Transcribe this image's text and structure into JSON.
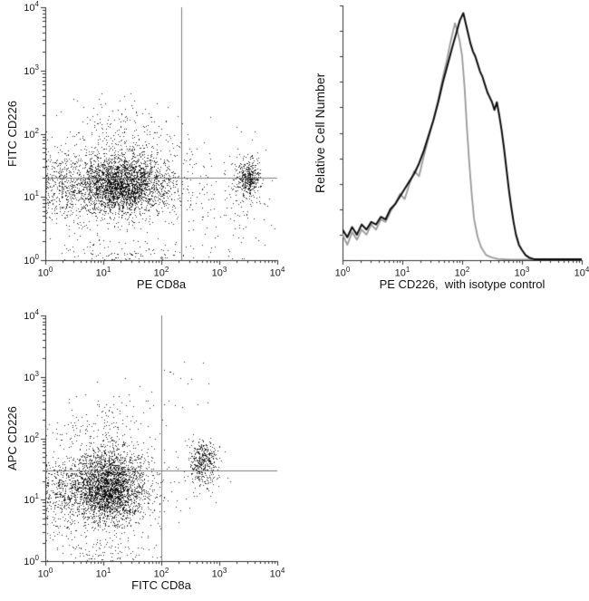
{
  "figure": {
    "background": "#ffffff",
    "axis_color": "#333333",
    "gate_color": "#7d7d7d"
  },
  "chart_data": [
    {
      "id": "fitc-cd226-vs-pe-cd8a",
      "type": "scatter",
      "xlabel": "PE CD8a",
      "ylabel": "FITC CD226",
      "x_scale": "log",
      "y_scale": "log",
      "log_base": 10,
      "xlim": [
        1,
        10000
      ],
      "ylim": [
        1,
        10000
      ],
      "x_tick_exponents": [
        0,
        1,
        2,
        3,
        4
      ],
      "y_tick_exponents": [
        0,
        1,
        2,
        3,
        4
      ],
      "grid": false,
      "dot_color": "#000000",
      "quadrant_gate": {
        "x": 220,
        "y": 20
      },
      "populations": [
        {
          "name": "cd8neg-cd226-main",
          "center_log": [
            1.3,
            1.2
          ],
          "sigma_log": [
            0.38,
            0.22
          ],
          "count": 2400
        },
        {
          "name": "cd8neg-halo",
          "center_log": [
            1.25,
            1.25
          ],
          "sigma_log": [
            0.6,
            0.35
          ],
          "count": 700
        },
        {
          "name": "left-edge-pileup",
          "center_log": [
            0.32,
            1.15
          ],
          "sigma_log": [
            0.25,
            0.3
          ],
          "count": 350
        },
        {
          "name": "cd226-high-sparse",
          "center_log": [
            1.3,
            2.0
          ],
          "sigma_log": [
            0.5,
            0.3
          ],
          "count": 200
        },
        {
          "name": "cd8pos-cd226pos",
          "center_log": [
            3.5,
            1.3
          ],
          "sigma_log": [
            0.1,
            0.14
          ],
          "count": 380
        },
        {
          "name": "cd8pos-halo",
          "center_log": [
            3.45,
            1.25
          ],
          "sigma_log": [
            0.2,
            0.3
          ],
          "count": 80
        },
        {
          "name": "cd8pos-cd226neg-sparse",
          "center_log": [
            3.3,
            0.7
          ],
          "sigma_log": [
            0.3,
            0.35
          ],
          "count": 70
        },
        {
          "name": "mid-sparse",
          "center_log": [
            2.5,
            1.1
          ],
          "sigma_log": [
            0.35,
            0.4
          ],
          "count": 90
        },
        {
          "name": "bottom-edge-pileup",
          "center_log": [
            1.3,
            0.12
          ],
          "sigma_log": [
            0.6,
            0.12
          ],
          "count": 120
        }
      ]
    },
    {
      "id": "pe-cd226-histogram",
      "type": "line",
      "xlabel": "PE CD226,  with isotype control",
      "ylabel": "Relative Cell Number",
      "x_scale": "log",
      "y_scale": "linear",
      "log_base": 10,
      "xlim": [
        1,
        10000
      ],
      "ylim": [
        0,
        1
      ],
      "x_tick_exponents": [
        0,
        1,
        2,
        3,
        4
      ],
      "grid": false,
      "legend": "none",
      "series": [
        {
          "name": "isotype control",
          "color": "#9a9a9a",
          "width": 1.8,
          "points_logx_y": [
            [
              0,
              0.1
            ],
            [
              0.08,
              0.06
            ],
            [
              0.16,
              0.11
            ],
            [
              0.24,
              0.08
            ],
            [
              0.32,
              0.12
            ],
            [
              0.4,
              0.1
            ],
            [
              0.48,
              0.14
            ],
            [
              0.56,
              0.12
            ],
            [
              0.64,
              0.16
            ],
            [
              0.72,
              0.15
            ],
            [
              0.8,
              0.19
            ],
            [
              0.88,
              0.22
            ],
            [
              0.96,
              0.26
            ],
            [
              1.04,
              0.24
            ],
            [
              1.12,
              0.3
            ],
            [
              1.2,
              0.35
            ],
            [
              1.28,
              0.33
            ],
            [
              1.36,
              0.41
            ],
            [
              1.44,
              0.48
            ],
            [
              1.52,
              0.55
            ],
            [
              1.6,
              0.63
            ],
            [
              1.68,
              0.72
            ],
            [
              1.74,
              0.78
            ],
            [
              1.8,
              0.85
            ],
            [
              1.84,
              0.89
            ],
            [
              1.88,
              0.93
            ],
            [
              1.92,
              0.9
            ],
            [
              1.96,
              0.86
            ],
            [
              2.0,
              0.8
            ],
            [
              2.04,
              0.68
            ],
            [
              2.08,
              0.52
            ],
            [
              2.12,
              0.38
            ],
            [
              2.16,
              0.26
            ],
            [
              2.2,
              0.16
            ],
            [
              2.26,
              0.09
            ],
            [
              2.32,
              0.05
            ],
            [
              2.4,
              0.02
            ],
            [
              2.5,
              0.01
            ],
            [
              2.6,
              0.005
            ],
            [
              2.8,
              0.002
            ],
            [
              4.0,
              0.002
            ]
          ]
        },
        {
          "name": "PE CD226",
          "color": "#0d0d0d",
          "width": 2,
          "points_logx_y": [
            [
              0,
              0.12
            ],
            [
              0.08,
              0.09
            ],
            [
              0.16,
              0.13
            ],
            [
              0.24,
              0.1
            ],
            [
              0.32,
              0.14
            ],
            [
              0.4,
              0.12
            ],
            [
              0.48,
              0.15
            ],
            [
              0.56,
              0.14
            ],
            [
              0.64,
              0.17
            ],
            [
              0.72,
              0.16
            ],
            [
              0.8,
              0.2
            ],
            [
              0.88,
              0.22
            ],
            [
              0.96,
              0.25
            ],
            [
              1.04,
              0.28
            ],
            [
              1.12,
              0.31
            ],
            [
              1.2,
              0.34
            ],
            [
              1.28,
              0.38
            ],
            [
              1.36,
              0.43
            ],
            [
              1.44,
              0.49
            ],
            [
              1.52,
              0.55
            ],
            [
              1.6,
              0.62
            ],
            [
              1.68,
              0.7
            ],
            [
              1.76,
              0.77
            ],
            [
              1.84,
              0.84
            ],
            [
              1.9,
              0.89
            ],
            [
              1.96,
              0.94
            ],
            [
              2.02,
              0.97
            ],
            [
              2.06,
              0.93
            ],
            [
              2.1,
              0.89
            ],
            [
              2.14,
              0.85
            ],
            [
              2.18,
              0.82
            ],
            [
              2.22,
              0.8
            ],
            [
              2.26,
              0.77
            ],
            [
              2.3,
              0.74
            ],
            [
              2.34,
              0.72
            ],
            [
              2.38,
              0.69
            ],
            [
              2.42,
              0.66
            ],
            [
              2.46,
              0.64
            ],
            [
              2.5,
              0.62
            ],
            [
              2.54,
              0.59
            ],
            [
              2.58,
              0.62
            ],
            [
              2.62,
              0.57
            ],
            [
              2.66,
              0.51
            ],
            [
              2.7,
              0.44
            ],
            [
              2.74,
              0.36
            ],
            [
              2.78,
              0.28
            ],
            [
              2.82,
              0.21
            ],
            [
              2.86,
              0.15
            ],
            [
              2.9,
              0.1
            ],
            [
              2.95,
              0.06
            ],
            [
              3.0,
              0.04
            ],
            [
              3.06,
              0.02
            ],
            [
              3.12,
              0.01
            ],
            [
              3.2,
              0.004
            ],
            [
              4.0,
              0.004
            ]
          ]
        }
      ]
    },
    {
      "id": "apc-cd226-vs-fitc-cd8a",
      "type": "scatter",
      "xlabel": "FITC CD8a",
      "ylabel": "APC CD226",
      "x_scale": "log",
      "y_scale": "log",
      "log_base": 10,
      "xlim": [
        1,
        10000
      ],
      "ylim": [
        1,
        10000
      ],
      "x_tick_exponents": [
        0,
        1,
        2,
        3,
        4
      ],
      "y_tick_exponents": [
        0,
        1,
        2,
        3,
        4
      ],
      "grid": false,
      "dot_color": "#000000",
      "quadrant_gate": {
        "x": 100,
        "y": 30
      },
      "populations": [
        {
          "name": "cd8neg-cd226-main",
          "center_log": [
            1.05,
            1.2
          ],
          "sigma_log": [
            0.33,
            0.28
          ],
          "count": 2600
        },
        {
          "name": "cd8neg-halo",
          "center_log": [
            1.1,
            1.25
          ],
          "sigma_log": [
            0.55,
            0.4
          ],
          "count": 600
        },
        {
          "name": "left-edge-pileup",
          "center_log": [
            0.28,
            1.1
          ],
          "sigma_log": [
            0.2,
            0.3
          ],
          "count": 250
        },
        {
          "name": "cd226-high-sparse",
          "center_log": [
            1.0,
            2.1
          ],
          "sigma_log": [
            0.45,
            0.3
          ],
          "count": 180
        },
        {
          "name": "cd8pos-cd226pos",
          "center_log": [
            2.72,
            1.62
          ],
          "sigma_log": [
            0.12,
            0.18
          ],
          "count": 350
        },
        {
          "name": "cd8pos-halo",
          "center_log": [
            2.7,
            1.5
          ],
          "sigma_log": [
            0.22,
            0.3
          ],
          "count": 70
        },
        {
          "name": "upper-outliers",
          "center_log": [
            2.0,
            2.8
          ],
          "sigma_log": [
            0.5,
            0.25
          ],
          "count": 25
        },
        {
          "name": "bottom-edge-pileup",
          "center_log": [
            1.0,
            0.12
          ],
          "sigma_log": [
            0.5,
            0.12
          ],
          "count": 100
        }
      ]
    }
  ]
}
